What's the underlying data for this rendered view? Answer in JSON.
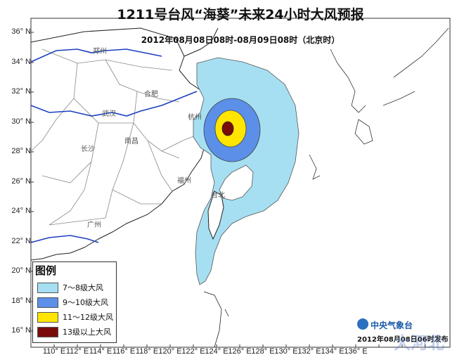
{
  "title": "1211号台风“海葵”未来24小时大风预报",
  "subtitle": "2012年08月08日08时-08月09日08时（北京时）",
  "latitude_labels": [
    "36° N",
    "34° N",
    "32° N",
    "30° N",
    "28° N",
    "26° N",
    "24° N",
    "22° N",
    "20° N",
    "18° N",
    "16° N"
  ],
  "longitude_labels": [
    "110° E",
    "112° E",
    "114° E",
    "116° E",
    "118° E",
    "120° E",
    "122° E",
    "124° E",
    "126° E",
    "128° E",
    "130° E",
    "132° E",
    "134° E",
    "136° E"
  ],
  "cities": [
    "郑州",
    "合肥",
    "武汉",
    "南昌",
    "长沙",
    "杭州",
    "福州",
    "台北",
    "广州"
  ],
  "legend": {
    "title": "图例",
    "items": [
      {
        "label": "7～8级大风",
        "color": "#a6dff2"
      },
      {
        "label": "9～10级大风",
        "color": "#5b8fe8"
      },
      {
        "label": "11～12级大风",
        "color": "#ffe500"
      },
      {
        "label": "13级以上大风",
        "color": "#7a0b0b"
      }
    ]
  },
  "agency": "中央气象台",
  "issue_text": "2012年08月08日06时发布",
  "watermark": "大河北",
  "colors": {
    "river": "#1c3fbf",
    "border": "#888888",
    "coast": "#222222"
  }
}
